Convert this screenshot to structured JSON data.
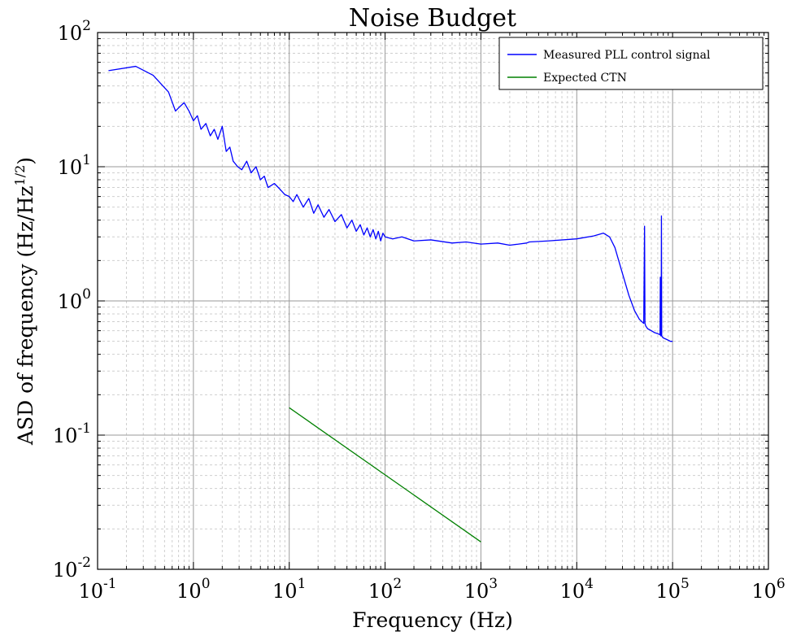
{
  "chart_data": {
    "type": "line",
    "title": "Noise Budget",
    "xlabel": "Frequency (Hz)",
    "ylabel": {
      "prefix": "ASD of frequency (Hz/Hz",
      "sup": "1/2",
      "suffix": ")"
    },
    "xscale": "log",
    "yscale": "log",
    "xlim": [
      0.1,
      1000000
    ],
    "ylim": [
      0.01,
      100
    ],
    "grid": true,
    "legend_position": "top-right",
    "x_ticks": [
      {
        "base": "10",
        "exp": "-1"
      },
      {
        "base": "10",
        "exp": "0"
      },
      {
        "base": "10",
        "exp": "1"
      },
      {
        "base": "10",
        "exp": "2"
      },
      {
        "base": "10",
        "exp": "3"
      },
      {
        "base": "10",
        "exp": "4"
      },
      {
        "base": "10",
        "exp": "5"
      },
      {
        "base": "10",
        "exp": "6"
      }
    ],
    "y_ticks": [
      {
        "base": "10",
        "exp": "-2"
      },
      {
        "base": "10",
        "exp": "-1"
      },
      {
        "base": "10",
        "exp": "0"
      },
      {
        "base": "10",
        "exp": "1"
      },
      {
        "base": "10",
        "exp": "2"
      }
    ],
    "series": [
      {
        "name": "Measured PLL control signal",
        "color": "#0000ff",
        "x": [
          0.13,
          0.25,
          0.38,
          0.55,
          0.65,
          0.72,
          0.8,
          0.9,
          1.0,
          1.1,
          1.2,
          1.35,
          1.5,
          1.65,
          1.8,
          2.0,
          2.2,
          2.4,
          2.6,
          2.9,
          3.2,
          3.6,
          4.0,
          4.5,
          5.0,
          5.5,
          6.0,
          7.0,
          8.0,
          9.0,
          10,
          11,
          12,
          14,
          16,
          18,
          20,
          23,
          26,
          30,
          35,
          40,
          45,
          50,
          55,
          60,
          65,
          70,
          75,
          80,
          85,
          90,
          95,
          100,
          120,
          150,
          200,
          300,
          500,
          700,
          1000,
          1500,
          2000,
          3000,
          3200,
          5000,
          10000,
          15000,
          19000,
          22000,
          25000,
          30000,
          35000,
          40000,
          45000,
          50000,
          51000,
          51500,
          52500,
          55000,
          60000,
          65000,
          70000,
          74000,
          74500,
          75000,
          76000,
          76500,
          77000,
          78000,
          80000,
          85000,
          90000,
          95000,
          100000
        ],
        "values": [
          52,
          56,
          48,
          36,
          26,
          28,
          30,
          26,
          22,
          24,
          19,
          21,
          17,
          19,
          16,
          20,
          13,
          14,
          11,
          10,
          9.5,
          11,
          9,
          10,
          8,
          8.5,
          7,
          7.5,
          6.8,
          6.2,
          6,
          5.5,
          6.2,
          5.0,
          5.8,
          4.5,
          5.2,
          4.2,
          4.8,
          3.9,
          4.4,
          3.5,
          4.0,
          3.3,
          3.7,
          3.1,
          3.5,
          3.0,
          3.4,
          2.9,
          3.3,
          2.8,
          3.2,
          3.0,
          2.9,
          3.0,
          2.8,
          2.85,
          2.7,
          2.75,
          2.65,
          2.7,
          2.6,
          2.7,
          2.75,
          2.8,
          2.9,
          3.05,
          3.2,
          3.0,
          2.5,
          1.6,
          1.1,
          0.85,
          0.73,
          0.68,
          3.6,
          0.68,
          0.65,
          0.62,
          0.6,
          0.58,
          0.57,
          0.56,
          1.5,
          0.55,
          0.55,
          4.3,
          0.55,
          0.54,
          0.53,
          0.52,
          0.51,
          0.5,
          0.5
        ]
      },
      {
        "name": "Expected CTN",
        "color": "#008000",
        "x": [
          10,
          1000
        ],
        "values": [
          0.16,
          0.016
        ]
      }
    ]
  }
}
